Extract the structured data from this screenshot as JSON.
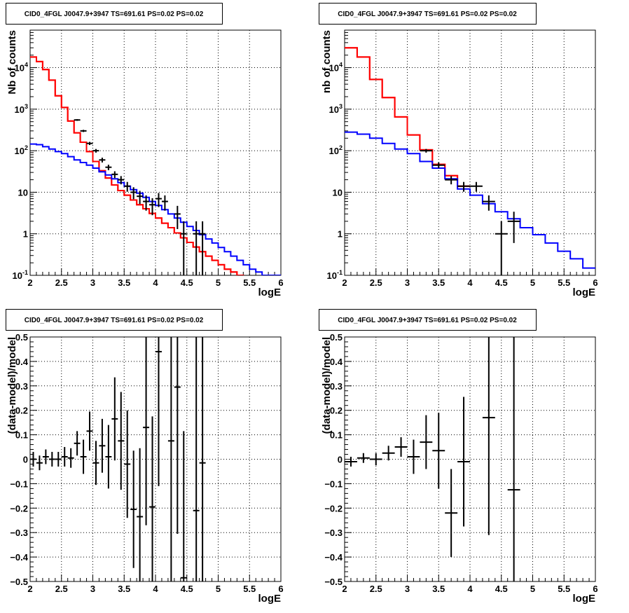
{
  "colors": {
    "data": "#000000",
    "total_model": "#ff0000",
    "background_model": "#0000ff",
    "grid": "#000000"
  },
  "chart_data": [
    {
      "id": "counts-left",
      "type": "line",
      "title": "CID0_4FGL J0047.9+3947 TS=691.61 PS=0.02 PS=0.02",
      "xlabel": "logE",
      "ylabel": "Nb of counts",
      "xlim": [
        2,
        6
      ],
      "ylim": [
        0.1,
        80000
      ],
      "yscale": "log",
      "grid": true,
      "xticks": [
        2,
        2.5,
        3,
        3.5,
        4,
        4.5,
        5,
        5.5,
        6
      ],
      "xtick_labels": [
        "2",
        "2.5",
        "3",
        "3.5",
        "4",
        "4.5",
        "5",
        "5.5",
        "6"
      ],
      "yticks": [
        0.1,
        1,
        10,
        100,
        1000,
        10000
      ],
      "ytick_labels": [
        "10^-1",
        "1",
        "10",
        "10^2",
        "10^3",
        "10^4"
      ],
      "bin_edges": [
        2,
        2.1,
        2.2,
        2.3,
        2.4,
        2.5,
        2.6,
        2.7,
        2.8,
        2.9,
        3,
        3.1,
        3.2,
        3.3,
        3.4,
        3.5,
        3.6,
        3.7,
        3.8,
        3.9,
        4,
        4.1,
        4.2,
        4.3,
        4.4,
        4.5,
        4.6,
        4.7,
        4.8,
        4.9,
        5,
        5.1,
        5.2,
        5.3,
        5.4,
        5.5,
        5.6,
        5.7,
        5.8,
        5.9,
        6
      ],
      "series": [
        {
          "values": [
            18000,
            14000,
            9000,
            5000,
            2100,
            1100,
            520,
            270,
            160,
            95,
            55,
            33,
            22,
            15,
            11,
            8.5,
            6.5,
            5,
            4,
            3.1,
            2.4,
            1.8,
            1.4,
            1.05,
            0.8,
            0.62,
            0.48,
            0.37,
            0.29,
            0.23,
            0.18,
            0.14,
            0.12,
            0.1,
            0.09,
            0.08
          ]
        },
        {
          "values": [
            18000,
            14000,
            9000,
            5000,
            2100,
            1100,
            520,
            270,
            160,
            95,
            55,
            33,
            22,
            15,
            11,
            8.5,
            6.5,
            5,
            4,
            3.1,
            2.4,
            1.8,
            1.4,
            1.05,
            0.8,
            0.62,
            0.48,
            0.37,
            0.29,
            0.23,
            0.18,
            0.14,
            0.12,
            0.1,
            0.09,
            0.08
          ]
        },
        {
          "values": [
            145,
            140,
            125,
            110,
            95,
            85,
            72,
            60,
            52,
            45,
            38,
            31,
            26,
            21,
            17,
            14,
            11.5,
            9.5,
            7.5,
            6,
            4.8,
            3.8,
            3,
            2.4,
            1.9,
            1.5,
            1.2,
            0.95,
            0.75,
            0.6,
            0.47,
            0.37,
            0.29,
            0.23,
            0.18,
            0.14,
            0.12,
            0.1,
            0.1,
            0.1
          ]
        }
      ],
      "points": [
        {
          "x": 2.75,
          "y": 550,
          "yerr_lo": 25,
          "yerr_hi": 25
        },
        {
          "x": 2.85,
          "y": 300,
          "yerr_lo": 18,
          "yerr_hi": 18
        },
        {
          "x": 2.95,
          "y": 150,
          "yerr_lo": 13,
          "yerr_hi": 13
        },
        {
          "x": 3.05,
          "y": 100,
          "yerr_lo": 10,
          "yerr_hi": 10
        },
        {
          "x": 3.15,
          "y": 60,
          "yerr_lo": 8,
          "yerr_hi": 8
        },
        {
          "x": 3.25,
          "y": 40,
          "yerr_lo": 6,
          "yerr_hi": 6
        },
        {
          "x": 3.35,
          "y": 27,
          "yerr_lo": 5,
          "yerr_hi": 5
        },
        {
          "x": 3.45,
          "y": 20,
          "yerr_lo": 4.5,
          "yerr_hi": 4.5
        },
        {
          "x": 3.55,
          "y": 14,
          "yerr_lo": 3.7,
          "yerr_hi": 3.7
        },
        {
          "x": 3.65,
          "y": 10,
          "yerr_lo": 3.2,
          "yerr_hi": 3.2
        },
        {
          "x": 3.75,
          "y": 8,
          "yerr_lo": 2.8,
          "yerr_hi": 2.8
        },
        {
          "x": 3.85,
          "y": 6,
          "yerr_lo": 2.4,
          "yerr_hi": 2.4
        },
        {
          "x": 3.95,
          "y": 5,
          "yerr_lo": 2.2,
          "yerr_hi": 2.2
        },
        {
          "x": 4.05,
          "y": 7,
          "yerr_lo": 2.6,
          "yerr_hi": 2.6
        },
        {
          "x": 4.15,
          "y": 6,
          "yerr_lo": 2.4,
          "yerr_hi": 2.4
        },
        {
          "x": 4.35,
          "y": 3,
          "yerr_lo": 1.7,
          "yerr_hi": 1.7
        },
        {
          "x": 4.45,
          "y": 1,
          "yerr_lo": 0.9,
          "yerr_hi": 1.0
        },
        {
          "x": 4.65,
          "y": 1,
          "yerr_lo": 0.9,
          "yerr_hi": 1.0
        },
        {
          "x": 4.75,
          "y": 1,
          "yerr_lo": 0.9,
          "yerr_hi": 1.0
        }
      ]
    },
    {
      "id": "counts-right",
      "type": "line",
      "title": "CID0_4FGL J0047.9+3947 TS=691.61 PS=0.02 PS=0.02",
      "xlabel": "logE",
      "ylabel": "nb of counts",
      "xlim": [
        2,
        6
      ],
      "ylim": [
        0.1,
        80000
      ],
      "yscale": "log",
      "grid": true,
      "xticks": [
        2,
        2.5,
        3,
        3.5,
        4,
        4.5,
        5,
        5.5,
        6
      ],
      "xtick_labels": [
        "2",
        "2.5",
        "3",
        "3.5",
        "4",
        "4.5",
        "5",
        "5.5",
        "6"
      ],
      "yticks": [
        0.1,
        1,
        10,
        100,
        1000,
        10000
      ],
      "ytick_labels": [
        "10^-1",
        "1",
        "10",
        "10^2",
        "10^3",
        "10^4"
      ],
      "bin_edges": [
        2,
        2.2,
        2.4,
        2.6,
        2.8,
        3,
        3.2,
        3.4,
        3.6,
        3.8,
        4,
        4.2,
        4.4,
        4.6,
        4.8,
        5,
        5.2,
        5.4,
        5.6,
        5.8,
        6
      ],
      "series": [
        {
          "values": [
            30000,
            18000,
            5200,
            1900,
            650,
            240,
            105,
            47,
            25,
            14
          ]
        },
        {
          "values": [
            30000,
            18000,
            5200,
            1900,
            650,
            240,
            105,
            47,
            25,
            14
          ]
        },
        {
          "values": [
            280,
            250,
            200,
            150,
            110,
            85,
            55,
            38,
            21,
            12,
            8.5,
            5.3,
            3.4,
            2.3,
            1.4,
            0.95,
            0.6,
            0.38,
            0.25,
            0.15
          ]
        }
      ],
      "points": [
        {
          "x": 3.3,
          "y": 100,
          "yerr_lo": 10,
          "yerr_hi": 10
        },
        {
          "x": 3.5,
          "y": 45,
          "yerr_lo": 7,
          "yerr_hi": 7
        },
        {
          "x": 3.7,
          "y": 20,
          "yerr_lo": 4.5,
          "yerr_hi": 4.5
        },
        {
          "x": 3.9,
          "y": 14,
          "yerr_lo": 3.7,
          "yerr_hi": 3.7
        },
        {
          "x": 4.1,
          "y": 14,
          "yerr_lo": 3.7,
          "yerr_hi": 3.7
        },
        {
          "x": 4.3,
          "y": 6,
          "yerr_lo": 2.4,
          "yerr_hi": 2.4
        },
        {
          "x": 4.5,
          "y": 1,
          "yerr_lo": 0.9,
          "yerr_hi": 1.0
        },
        {
          "x": 4.7,
          "y": 2,
          "yerr_lo": 1.4,
          "yerr_hi": 1.4
        }
      ]
    },
    {
      "id": "residuals-left",
      "type": "scatter",
      "title": "CID0_4FGL J0047.9+3947 TS=691.61 PS=0.02 PS=0.02",
      "xlabel": "logE",
      "ylabel": "(data-model)/model",
      "xlim": [
        2,
        6
      ],
      "ylim": [
        -0.5,
        0.5
      ],
      "grid": true,
      "xticks": [
        2,
        2.5,
        3,
        3.5,
        4,
        4.5,
        5,
        5.5,
        6
      ],
      "xtick_labels": [
        "2",
        "2.5",
        "3",
        "3.5",
        "4",
        "4.5",
        "5",
        "5.5",
        "6"
      ],
      "yticks": [
        -0.5,
        -0.4,
        -0.3,
        -0.2,
        -0.1,
        0,
        0.1,
        0.2,
        0.3,
        0.4,
        0.5
      ],
      "ytick_labels": [
        "−0.5",
        "−0.4",
        "−0.3",
        "−0.2",
        "−0.1",
        "0",
        "0.1",
        "0.2",
        "0.3",
        "0.4",
        "0.5"
      ],
      "xerr": 0.05,
      "points": [
        {
          "x": 2.05,
          "y": 0.0,
          "yerr": 0.03
        },
        {
          "x": 2.15,
          "y": -0.015,
          "yerr": 0.03
        },
        {
          "x": 2.25,
          "y": 0.01,
          "yerr": 0.03
        },
        {
          "x": 2.35,
          "y": 0.0,
          "yerr": 0.03
        },
        {
          "x": 2.45,
          "y": 0.0,
          "yerr": 0.03
        },
        {
          "x": 2.55,
          "y": 0.01,
          "yerr": 0.04
        },
        {
          "x": 2.65,
          "y": 0.005,
          "yerr": 0.04
        },
        {
          "x": 2.75,
          "y": 0.065,
          "yerr": 0.05
        },
        {
          "x": 2.85,
          "y": 0.01,
          "yerr": 0.07
        },
        {
          "x": 2.95,
          "y": 0.115,
          "yerr": 0.08
        },
        {
          "x": 3.05,
          "y": -0.015,
          "yerr": 0.09
        },
        {
          "x": 3.15,
          "y": 0.055,
          "yerr": 0.11
        },
        {
          "x": 3.25,
          "y": 0.01,
          "yerr": 0.13
        },
        {
          "x": 3.35,
          "y": 0.165,
          "yerr": 0.17
        },
        {
          "x": 3.45,
          "y": 0.075,
          "yerr": 0.2
        },
        {
          "x": 3.55,
          "y": -0.02,
          "yerr": 0.22
        },
        {
          "x": 3.65,
          "y": -0.205,
          "yerr": 0.24
        },
        {
          "x": 3.75,
          "y": -0.235,
          "yerr": 0.28
        },
        {
          "x": 3.85,
          "y": 0.13,
          "yerr": 0.4
        },
        {
          "x": 3.95,
          "y": -0.195,
          "yerr": 0.37
        },
        {
          "x": 4.05,
          "y": 0.44,
          "yerr": 0.55
        },
        {
          "x": 4.25,
          "y": 0.075,
          "yerr": 0.6
        },
        {
          "x": 4.35,
          "y": 0.295,
          "yerr": 0.6
        },
        {
          "x": 4.45,
          "y": -0.485,
          "yerr": 0.6
        },
        {
          "x": 4.65,
          "y": -0.21,
          "yerr": 0.8
        },
        {
          "x": 4.75,
          "y": -0.015,
          "yerr": 1.0
        }
      ]
    },
    {
      "id": "residuals-right",
      "type": "scatter",
      "title": "CID0_4FGL J0047.9+3947 TS=691.61 PS=0.02 PS=0.02",
      "xlabel": "logE",
      "ylabel": "(data-model)/model",
      "xlim": [
        2,
        6
      ],
      "ylim": [
        -0.5,
        0.5
      ],
      "grid": true,
      "xticks": [
        2,
        2.5,
        3,
        3.5,
        4,
        4.5,
        5,
        5.5,
        6
      ],
      "xtick_labels": [
        "2",
        "2.5",
        "3",
        "3.5",
        "4",
        "4.5",
        "5",
        "5.5",
        "6"
      ],
      "yticks": [
        -0.5,
        -0.4,
        -0.3,
        -0.2,
        -0.1,
        0,
        0.1,
        0.2,
        0.3,
        0.4,
        0.5
      ],
      "ytick_labels": [
        "−0.5",
        "−0.4",
        "−0.3",
        "−0.2",
        "−0.1",
        "0",
        "0.1",
        "0.2",
        "0.3",
        "0.4",
        "0.5"
      ],
      "xerr": 0.1,
      "points": [
        {
          "x": 2.1,
          "y": -0.01,
          "yerr": 0.02
        },
        {
          "x": 2.3,
          "y": 0.005,
          "yerr": 0.02
        },
        {
          "x": 2.5,
          "y": 0.0,
          "yerr": 0.025
        },
        {
          "x": 2.7,
          "y": 0.025,
          "yerr": 0.03
        },
        {
          "x": 2.9,
          "y": 0.05,
          "yerr": 0.04
        },
        {
          "x": 3.1,
          "y": 0.01,
          "yerr": 0.07
        },
        {
          "x": 3.3,
          "y": 0.07,
          "yerr": 0.11
        },
        {
          "x": 3.5,
          "y": 0.035,
          "yerr": 0.155
        },
        {
          "x": 3.7,
          "y": -0.22,
          "yerr": 0.18
        },
        {
          "x": 3.9,
          "y": -0.01,
          "yerr": 0.265
        },
        {
          "x": 4.3,
          "y": 0.17,
          "yerr": 0.48
        },
        {
          "x": 4.7,
          "y": -0.125,
          "yerr": 0.65
        }
      ]
    }
  ]
}
